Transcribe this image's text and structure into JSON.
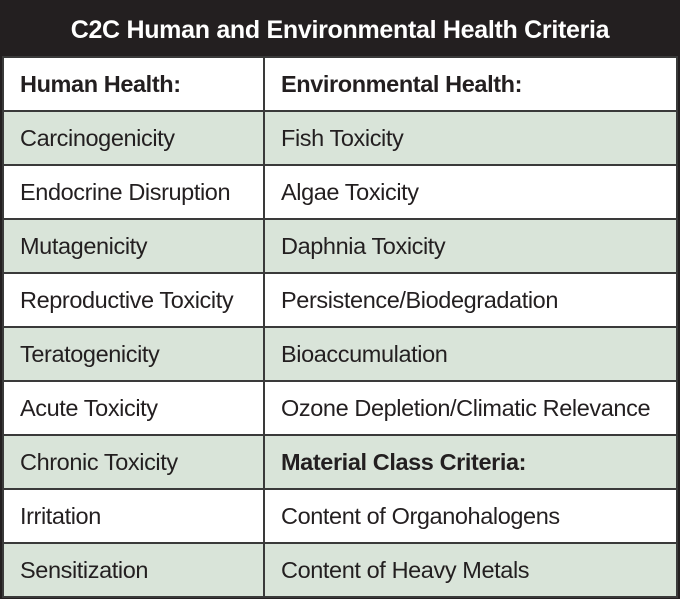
{
  "title": "C2C Human and Environmental Health Criteria",
  "colors": {
    "title_bg": "#231f20",
    "row_shade": "#d9e4d9"
  },
  "rows": [
    {
      "left": "Human Health:",
      "right": "Environmental Health:",
      "left_bold": true,
      "right_bold": true,
      "shaded": false
    },
    {
      "left": "Carcinogenicity",
      "right": "Fish Toxicity",
      "shaded": true
    },
    {
      "left": "Endocrine Disruption",
      "right": "Algae Toxicity",
      "shaded": false
    },
    {
      "left": "Mutagenicity",
      "right": "Daphnia Toxicity",
      "shaded": true
    },
    {
      "left": "Reproductive Toxicity",
      "right": "Persistence/Biodegradation",
      "shaded": false
    },
    {
      "left": "Teratogenicity",
      "right": "Bioaccumulation",
      "shaded": true
    },
    {
      "left": "Acute Toxicity",
      "right": "Ozone Depletion/Climatic Relevance",
      "shaded": false
    },
    {
      "left": "Chronic Toxicity",
      "right": "Material Class Criteria:",
      "right_bold": true,
      "shaded": true
    },
    {
      "left": "Irritation",
      "right": "Content of Organohalogens",
      "shaded": false
    },
    {
      "left": "Sensitization",
      "right": "Content of Heavy Metals",
      "shaded": true
    }
  ]
}
